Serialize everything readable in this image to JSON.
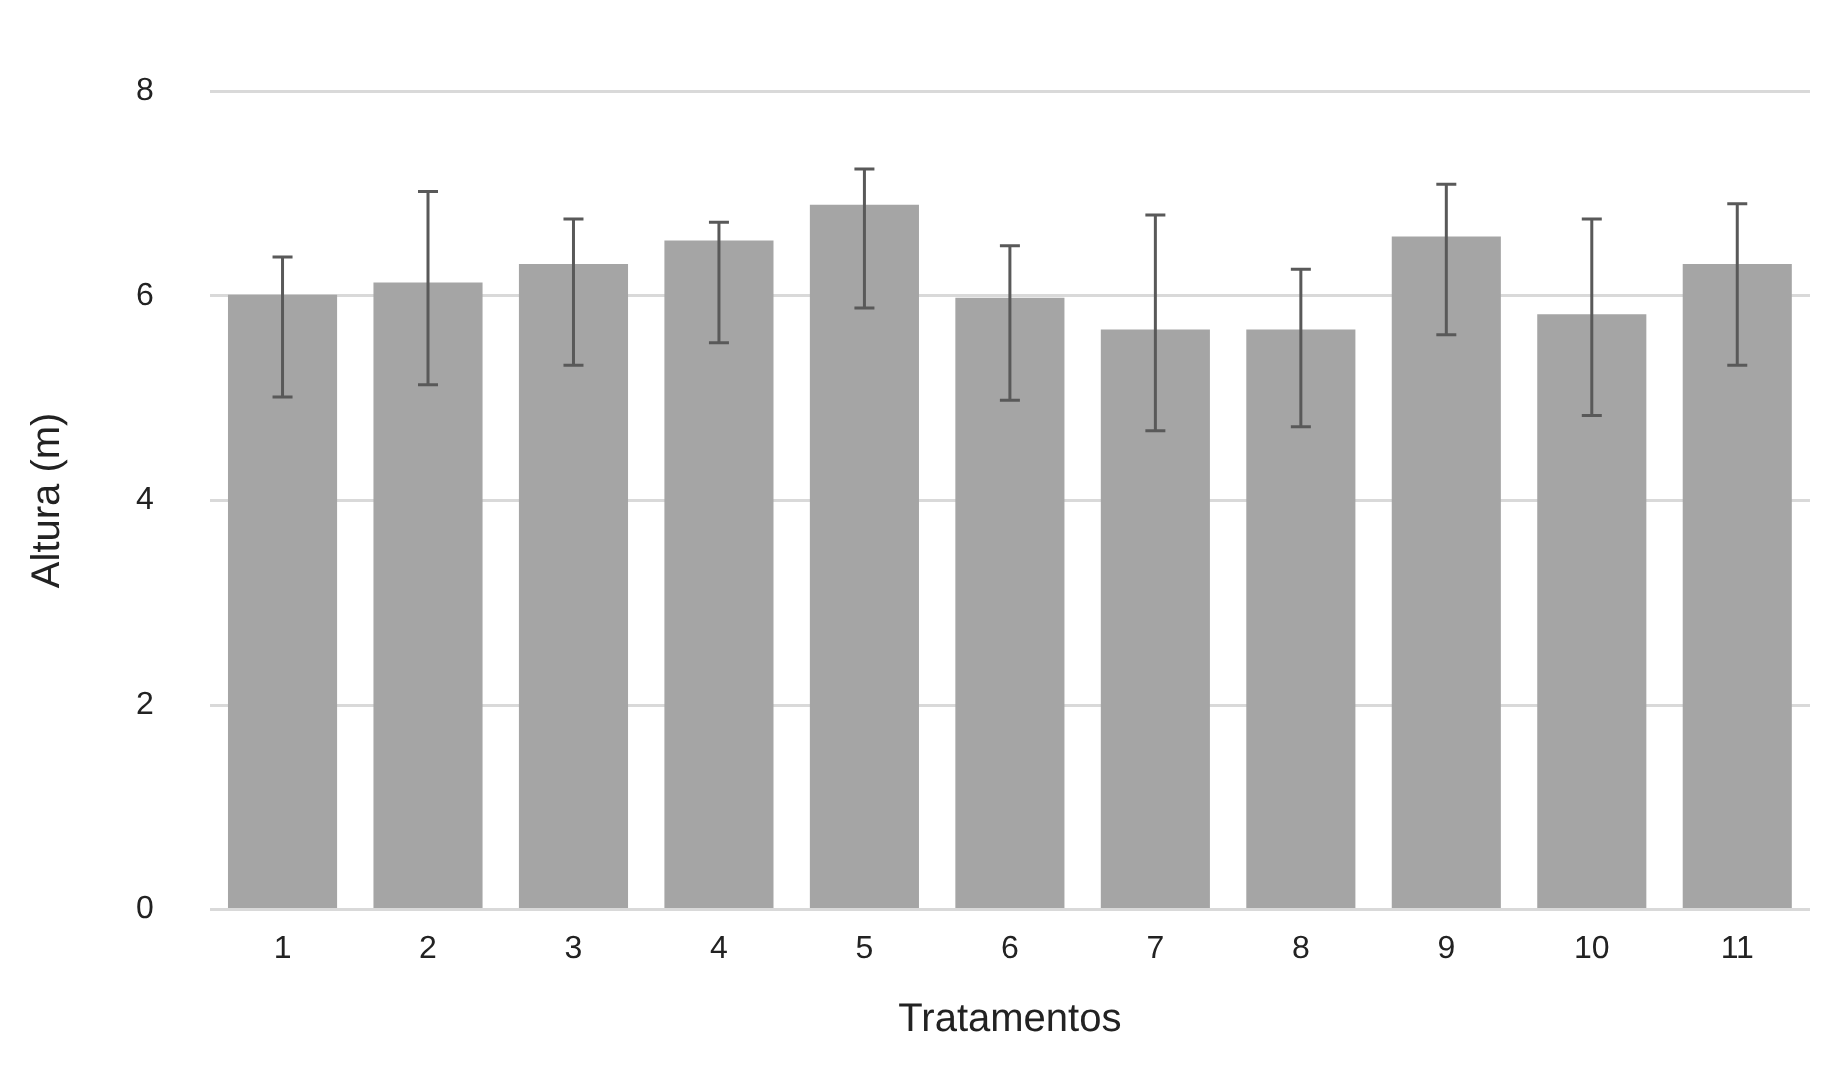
{
  "chart_data": {
    "type": "bar",
    "xlabel": "Tratamentos",
    "ylabel": "Altura (m)",
    "categories": [
      "1",
      "2",
      "3",
      "4",
      "5",
      "6",
      "7",
      "8",
      "9",
      "10",
      "11"
    ],
    "values": [
      6.01,
      6.13,
      6.31,
      6.54,
      6.89,
      5.98,
      5.67,
      5.67,
      6.58,
      5.82,
      6.31
    ],
    "errors": [
      [
        5.01,
        6.38
      ],
      [
        5.13,
        7.02
      ],
      [
        5.32,
        6.75
      ],
      [
        5.54,
        6.72
      ],
      [
        5.88,
        7.24
      ],
      [
        4.98,
        6.49
      ],
      [
        4.68,
        6.79
      ],
      [
        4.72,
        6.26
      ],
      [
        5.62,
        7.09
      ],
      [
        4.83,
        6.75
      ],
      [
        5.32,
        6.9
      ]
    ],
    "color": "#a5a5a5",
    "ylim": [
      0,
      8
    ],
    "yticks": [
      0,
      2,
      4,
      6,
      8
    ],
    "grid": "y",
    "legend": false
  }
}
